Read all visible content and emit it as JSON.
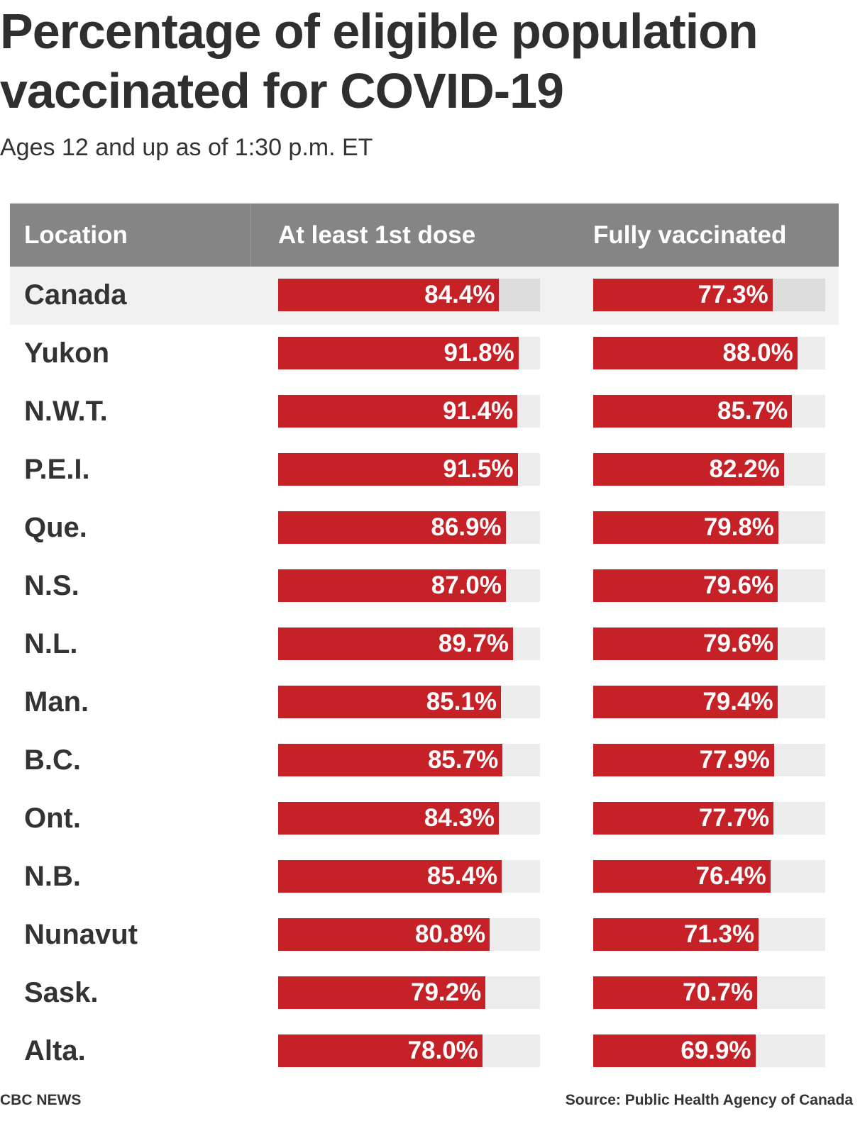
{
  "title": "Percentage of eligible population vaccinated for COVID-19",
  "subtitle": "Ages 12 and up as of 1:30 p.m. ET",
  "footer": {
    "credit": "CBC NEWS",
    "source": "Source: Public Health Agency of Canada"
  },
  "colors": {
    "bar": "#c62127",
    "track": "#ececec",
    "header": "#858585",
    "highlight_row": "#f1f1f1"
  },
  "chart_data": {
    "type": "table",
    "columns": [
      "Location",
      "At least 1st dose",
      "Fully vaccinated"
    ],
    "value_max": 100,
    "rows": [
      {
        "location": "Canada",
        "first_dose": 84.4,
        "first_dose_label": "84.4%",
        "fully": 77.3,
        "fully_label": "77.3%",
        "highlight": true
      },
      {
        "location": "Yukon",
        "first_dose": 91.8,
        "first_dose_label": "91.8%",
        "fully": 88.0,
        "fully_label": "88.0%"
      },
      {
        "location": "N.W.T.",
        "first_dose": 91.4,
        "first_dose_label": "91.4%",
        "fully": 85.7,
        "fully_label": "85.7%"
      },
      {
        "location": "P.E.I.",
        "first_dose": 91.5,
        "first_dose_label": "91.5%",
        "fully": 82.2,
        "fully_label": "82.2%"
      },
      {
        "location": "Que.",
        "first_dose": 86.9,
        "first_dose_label": "86.9%",
        "fully": 79.8,
        "fully_label": "79.8%"
      },
      {
        "location": "N.S.",
        "first_dose": 87.0,
        "first_dose_label": "87.0%",
        "fully": 79.6,
        "fully_label": "79.6%"
      },
      {
        "location": "N.L.",
        "first_dose": 89.7,
        "first_dose_label": "89.7%",
        "fully": 79.6,
        "fully_label": "79.6%"
      },
      {
        "location": "Man.",
        "first_dose": 85.1,
        "first_dose_label": "85.1%",
        "fully": 79.4,
        "fully_label": "79.4%"
      },
      {
        "location": "B.C.",
        "first_dose": 85.7,
        "first_dose_label": "85.7%",
        "fully": 77.9,
        "fully_label": "77.9%"
      },
      {
        "location": "Ont.",
        "first_dose": 84.3,
        "first_dose_label": "84.3%",
        "fully": 77.7,
        "fully_label": "77.7%"
      },
      {
        "location": "N.B.",
        "first_dose": 85.4,
        "first_dose_label": "85.4%",
        "fully": 76.4,
        "fully_label": "76.4%"
      },
      {
        "location": "Nunavut",
        "first_dose": 80.8,
        "first_dose_label": "80.8%",
        "fully": 71.3,
        "fully_label": "71.3%"
      },
      {
        "location": "Sask.",
        "first_dose": 79.2,
        "first_dose_label": "79.2%",
        "fully": 70.7,
        "fully_label": "70.7%"
      },
      {
        "location": "Alta.",
        "first_dose": 78.0,
        "first_dose_label": "78.0%",
        "fully": 69.9,
        "fully_label": "69.9%"
      }
    ]
  }
}
